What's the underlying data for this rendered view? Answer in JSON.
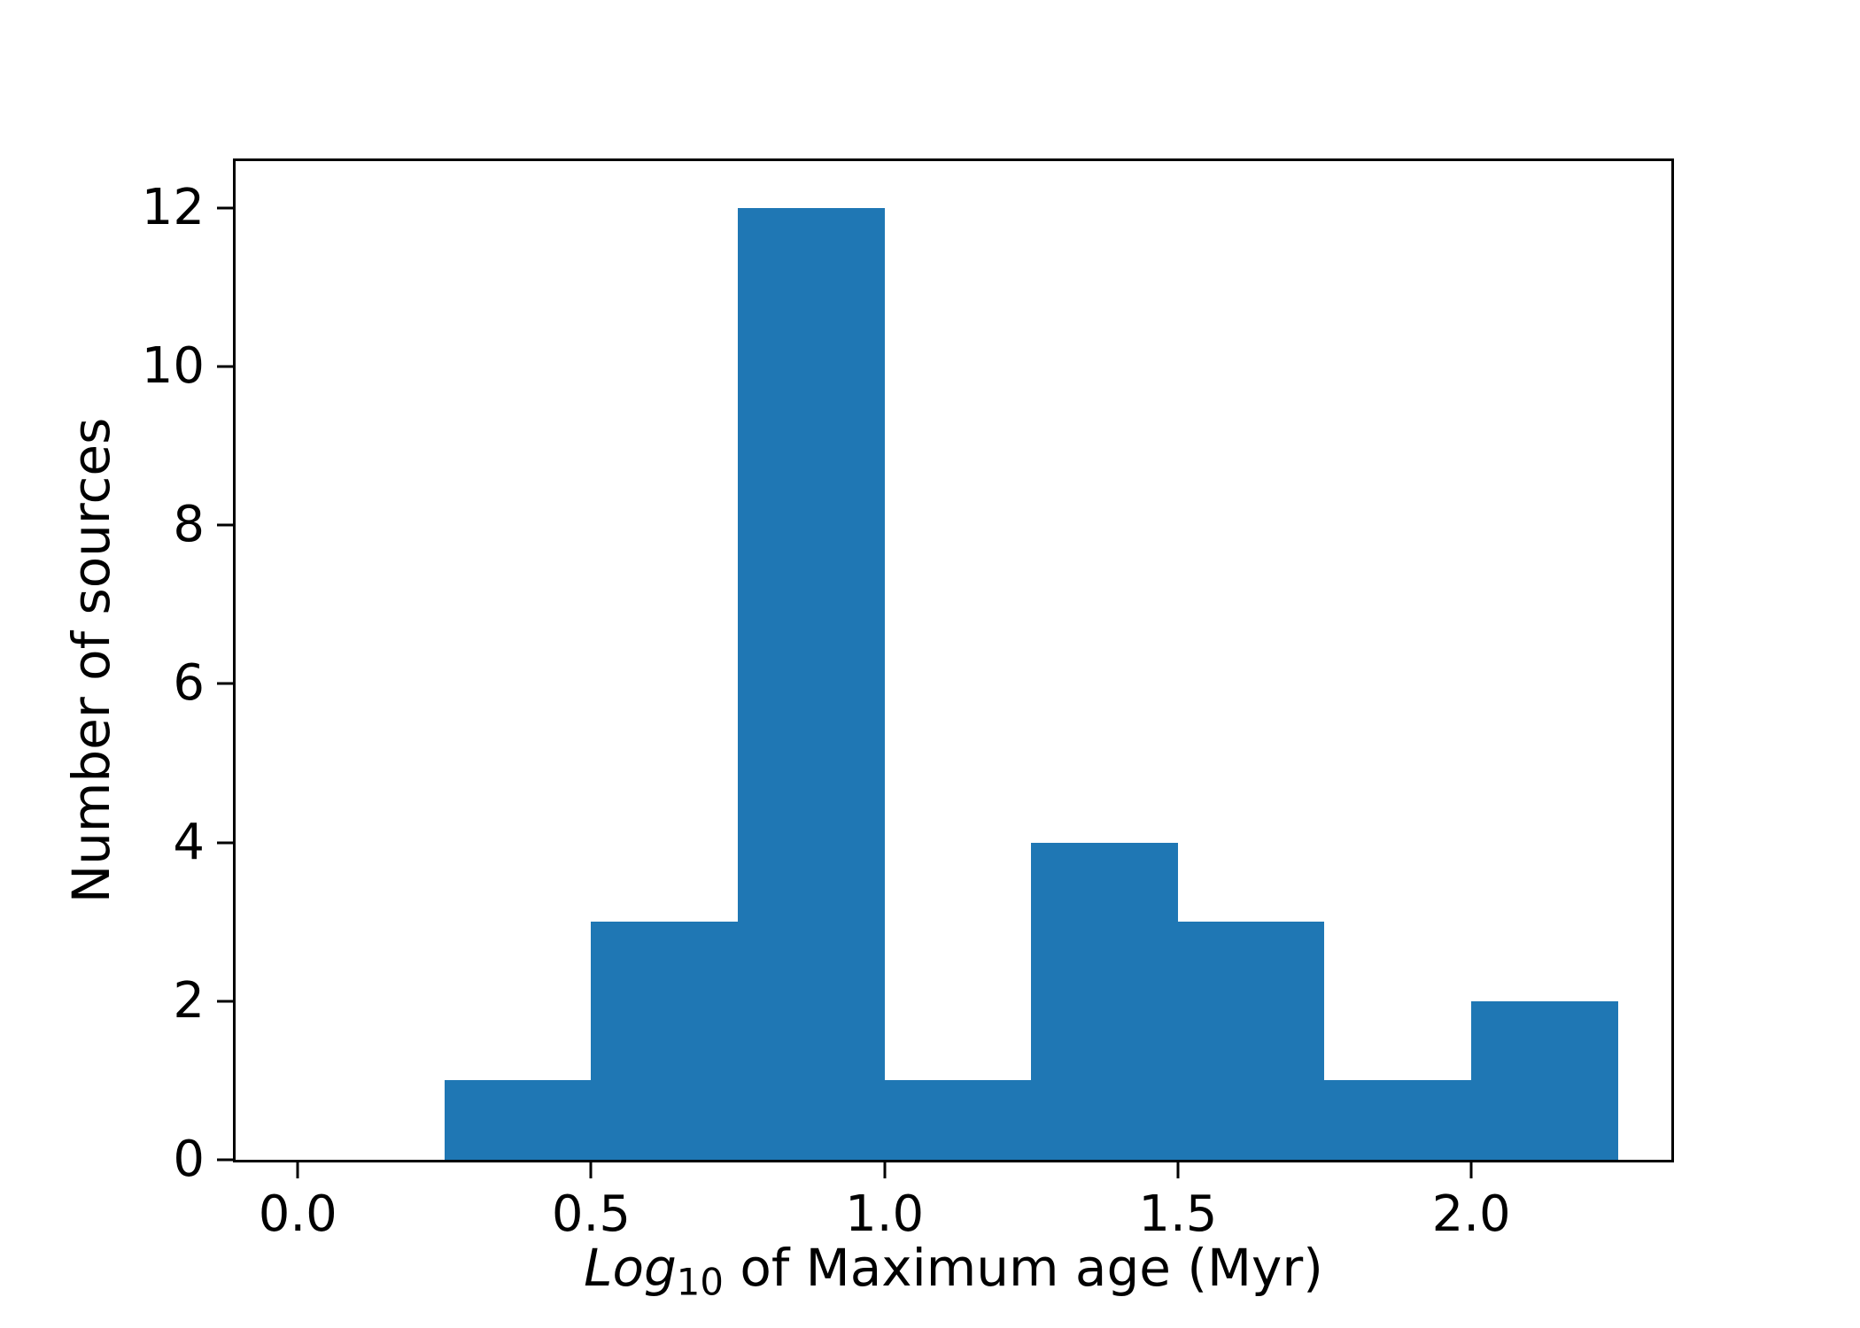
{
  "chart_data": {
    "type": "bar",
    "subtype": "histogram",
    "title": "",
    "xlabel": {
      "italic_part": "Log",
      "subscript": "10",
      "regular_part": " of Maximum age (Myr)",
      "plain_text": "Log10 of Maximum age (Myr)"
    },
    "ylabel": "Number of sources",
    "bin_edges": [
      0.25,
      0.5,
      0.75,
      1.0,
      1.25,
      1.5,
      1.75,
      2.0,
      2.25
    ],
    "counts": [
      1,
      3,
      12,
      1,
      4,
      3,
      1,
      2
    ],
    "x_ticks": [
      {
        "value": 0.0,
        "label": "0.0"
      },
      {
        "value": 0.5,
        "label": "0.5"
      },
      {
        "value": 1.0,
        "label": "1.0"
      },
      {
        "value": 1.5,
        "label": "1.5"
      },
      {
        "value": 2.0,
        "label": "2.0"
      }
    ],
    "y_ticks": [
      {
        "value": 0,
        "label": "0"
      },
      {
        "value": 2,
        "label": "2"
      },
      {
        "value": 4,
        "label": "4"
      },
      {
        "value": 6,
        "label": "6"
      },
      {
        "value": 8,
        "label": "8"
      },
      {
        "value": 10,
        "label": "10"
      },
      {
        "value": 12,
        "label": "12"
      }
    ],
    "xlim": [
      -0.106,
      2.341
    ],
    "ylim": [
      0,
      12.59
    ],
    "grid": false,
    "legend": false,
    "colors": {
      "bar": "#1f77b4",
      "spines": "#000000",
      "text": "#000000",
      "background": "#ffffff"
    }
  }
}
